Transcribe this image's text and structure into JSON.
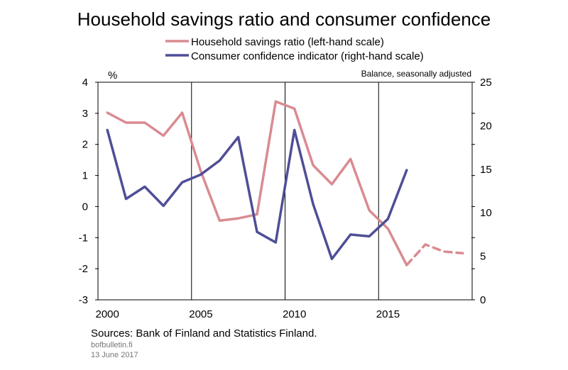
{
  "chart_data": {
    "type": "line",
    "title": "Household savings ratio and consumer confidence",
    "left_axis": {
      "unit": "%",
      "range": [
        -3,
        4
      ],
      "ticks": [
        4,
        3,
        2,
        1,
        0,
        -1,
        -2,
        -3
      ]
    },
    "right_axis": {
      "unit": "Balance, seasonally adjusted",
      "range": [
        0,
        25
      ],
      "ticks": [
        25,
        20,
        15,
        10,
        5,
        0
      ]
    },
    "x_axis": {
      "range": [
        1999.5,
        2019.5
      ],
      "tick_labels": [
        2000,
        2005,
        2010,
        2015
      ],
      "gridlines_at": [
        2004.5,
        2009.5,
        2014.5
      ]
    },
    "grid": "vertical",
    "legend_position": "top",
    "series": [
      {
        "name": "Household savings ratio (left-hand scale)",
        "axis": "left",
        "color": "#d98b91",
        "x": [
          2000,
          2001,
          2002,
          2003,
          2004,
          2005,
          2006,
          2007,
          2008,
          2009,
          2010,
          2011,
          2012,
          2013,
          2014,
          2015,
          2016
        ],
        "values": [
          3.02,
          2.7,
          2.7,
          2.28,
          3.02,
          1.13,
          -0.45,
          -0.38,
          -0.25,
          3.38,
          3.15,
          1.33,
          0.72,
          1.53,
          -0.12,
          -0.71,
          -1.88
        ]
      },
      {
        "name": "Household savings ratio forecast",
        "axis": "left",
        "color": "#d98b91",
        "dashed": true,
        "x": [
          2016,
          2017,
          2018,
          2019
        ],
        "values": [
          -1.88,
          -1.22,
          -1.45,
          -1.5
        ]
      },
      {
        "name": "Consumer confidence indicator (right-hand scale)",
        "axis": "right",
        "color": "#4f4e97",
        "x": [
          2000,
          2001,
          2002,
          2003,
          2004,
          2005,
          2006,
          2007,
          2008,
          2009,
          2010,
          2011,
          2012,
          2013,
          2014,
          2015,
          2016
        ],
        "values": [
          19.5,
          11.6,
          13.0,
          10.8,
          13.5,
          14.4,
          16.0,
          18.7,
          7.8,
          6.6,
          19.5,
          11.0,
          4.7,
          7.5,
          7.3,
          9.3,
          14.9
        ]
      }
    ],
    "sources": "Sources: Bank of Finland and Statistics Finland.",
    "footer_site": "bofbulletin.fi",
    "footer_date": "13 June 2017"
  }
}
